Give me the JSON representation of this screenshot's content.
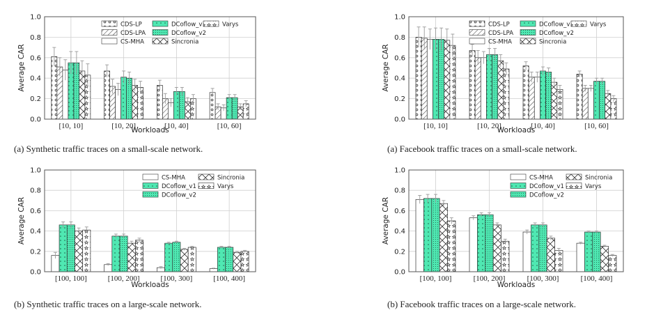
{
  "colors": {
    "green": "#4fe8b2",
    "frame": "#555555",
    "grid": "#cfcfcf",
    "err": "#9a9a9a"
  },
  "chart_data": [
    {
      "id": "a-synthetic-small",
      "type": "bar",
      "caption": "(a) Synthetic traffic traces on a small-scale network.",
      "xlabel": "Workloads",
      "ylabel": "Average CAR",
      "ylim": [
        0,
        1.0
      ],
      "yticks": [
        "0.0",
        "0.2",
        "0.4",
        "0.6",
        "0.8",
        "1.0"
      ],
      "categories": [
        "[10, 10]",
        "[10, 20]",
        "[10, 40]",
        "[10, 60]"
      ],
      "legend": {
        "placement": "top-right",
        "columns": 3
      },
      "series": [
        {
          "name": "CDS-LP",
          "pattern": "dots",
          "values": [
            0.61,
            0.47,
            0.33,
            0.26
          ],
          "err": [
            0.09,
            0.06,
            0.05,
            0.04
          ]
        },
        {
          "name": "CDS-LPA",
          "pattern": "diag",
          "values": [
            0.51,
            0.32,
            0.2,
            0.12
          ],
          "err": [
            0.09,
            0.07,
            0.05,
            0.03
          ]
        },
        {
          "name": "CS-MHA",
          "pattern": "blank",
          "values": [
            0.48,
            0.29,
            0.16,
            0.11
          ],
          "err": [
            0.1,
            0.06,
            0.04,
            0.03
          ]
        },
        {
          "name": "DCoflow_v1",
          "pattern": "greendot",
          "values": [
            0.55,
            0.41,
            0.27,
            0.21
          ],
          "err": [
            0.11,
            0.06,
            0.04,
            0.03
          ]
        },
        {
          "name": "DCoflow_v2",
          "pattern": "greenfine",
          "values": [
            0.55,
            0.4,
            0.27,
            0.21
          ],
          "err": [
            0.11,
            0.06,
            0.04,
            0.03
          ]
        },
        {
          "name": "Sincronia",
          "pattern": "cross",
          "values": [
            0.47,
            0.33,
            0.17,
            0.12
          ],
          "err": [
            0.1,
            0.06,
            0.04,
            0.03
          ]
        },
        {
          "name": "Varys",
          "pattern": "stars",
          "values": [
            0.43,
            0.31,
            0.2,
            0.15
          ],
          "err": [
            0.11,
            0.06,
            0.04,
            0.03
          ]
        }
      ]
    },
    {
      "id": "a-facebook-small",
      "type": "bar",
      "caption": "(a) Facebook traffic traces on a small-scale network.",
      "xlabel": "Workloads",
      "ylabel": "Average CAR",
      "ylim": [
        0,
        1.0
      ],
      "yticks": [
        "0.0",
        "0.2",
        "0.4",
        "0.6",
        "0.8",
        "1.0"
      ],
      "categories": [
        "[10, 10]",
        "[10, 20]",
        "[10, 40]",
        "[10, 60]"
      ],
      "legend": {
        "placement": "top-right",
        "columns": 3
      },
      "series": [
        {
          "name": "CDS-LP",
          "pattern": "dots",
          "values": [
            0.8,
            0.67,
            0.52,
            0.44
          ],
          "err": [
            0.1,
            0.06,
            0.04,
            0.03
          ]
        },
        {
          "name": "CDS-LPA",
          "pattern": "diag",
          "values": [
            0.79,
            0.6,
            0.41,
            0.3
          ],
          "err": [
            0.11,
            0.07,
            0.05,
            0.03
          ]
        },
        {
          "name": "CS-MHA",
          "pattern": "blank",
          "values": [
            0.78,
            0.6,
            0.41,
            0.3
          ],
          "err": [
            0.1,
            0.06,
            0.05,
            0.03
          ]
        },
        {
          "name": "DCoflow_v1",
          "pattern": "greendot",
          "values": [
            0.78,
            0.63,
            0.47,
            0.37
          ],
          "err": [
            0.11,
            0.06,
            0.04,
            0.03
          ]
        },
        {
          "name": "DCoflow_v2",
          "pattern": "greenfine",
          "values": [
            0.78,
            0.63,
            0.46,
            0.37
          ],
          "err": [
            0.11,
            0.06,
            0.04,
            0.03
          ]
        },
        {
          "name": "Sincronia",
          "pattern": "cross",
          "values": [
            0.77,
            0.57,
            0.36,
            0.25
          ],
          "err": [
            0.11,
            0.06,
            0.04,
            0.03
          ]
        },
        {
          "name": "Varys",
          "pattern": "stars",
          "values": [
            0.72,
            0.49,
            0.29,
            0.2
          ],
          "err": [
            0.11,
            0.06,
            0.04,
            0.03
          ]
        }
      ]
    },
    {
      "id": "b-synthetic-large",
      "type": "bar",
      "caption": "(b) Synthetic traffic traces on a large-scale network.",
      "xlabel": "Workloads",
      "ylabel": "Average CAR",
      "ylim": [
        0,
        1.0
      ],
      "yticks": [
        "0.0",
        "0.2",
        "0.4",
        "0.6",
        "0.8",
        "1.0"
      ],
      "categories": [
        "[100, 100]",
        "[100, 200]",
        "[100, 300]",
        "[100, 400]"
      ],
      "legend": {
        "placement": "top-right",
        "columns": 2
      },
      "series": [
        {
          "name": "CS-MHA",
          "pattern": "blank",
          "values": [
            0.16,
            0.07,
            0.04,
            0.03
          ],
          "err": [
            0.03,
            0.01,
            0.01,
            0.005
          ]
        },
        {
          "name": "DCoflow_v1",
          "pattern": "greendot",
          "values": [
            0.46,
            0.35,
            0.28,
            0.24
          ],
          "err": [
            0.03,
            0.02,
            0.01,
            0.01
          ]
        },
        {
          "name": "DCoflow_v2",
          "pattern": "greenfine",
          "values": [
            0.46,
            0.35,
            0.29,
            0.24
          ],
          "err": [
            0.03,
            0.02,
            0.01,
            0.01
          ]
        },
        {
          "name": "Sincronia",
          "pattern": "cross",
          "values": [
            0.4,
            0.28,
            0.22,
            0.19
          ],
          "err": [
            0.03,
            0.02,
            0.01,
            0.01
          ]
        },
        {
          "name": "Varys",
          "pattern": "stars",
          "values": [
            0.41,
            0.31,
            0.24,
            0.2
          ],
          "err": [
            0.03,
            0.02,
            0.01,
            0.01
          ]
        }
      ]
    },
    {
      "id": "b-facebook-large",
      "type": "bar",
      "caption": "(b) Facebook traffic traces on a large-scale network.",
      "xlabel": "Workloads",
      "ylabel": "Average CAR",
      "ylim": [
        0,
        1.0
      ],
      "yticks": [
        "0.0",
        "0.2",
        "0.4",
        "0.6",
        "0.8",
        "1.0"
      ],
      "categories": [
        "[100, 100]",
        "[100, 200]",
        "[100, 300]",
        "[100, 400]"
      ],
      "legend": {
        "placement": "top-right",
        "columns": 2
      },
      "series": [
        {
          "name": "CS-MHA",
          "pattern": "blank",
          "values": [
            0.71,
            0.53,
            0.39,
            0.28
          ],
          "err": [
            0.04,
            0.02,
            0.02,
            0.01
          ]
        },
        {
          "name": "DCoflow_v1",
          "pattern": "greendot",
          "values": [
            0.72,
            0.56,
            0.46,
            0.39
          ],
          "err": [
            0.04,
            0.02,
            0.02,
            0.01
          ]
        },
        {
          "name": "DCoflow_v2",
          "pattern": "greenfine",
          "values": [
            0.72,
            0.56,
            0.46,
            0.39
          ],
          "err": [
            0.04,
            0.02,
            0.02,
            0.01
          ]
        },
        {
          "name": "Sincronia",
          "pattern": "cross",
          "values": [
            0.67,
            0.46,
            0.33,
            0.25
          ],
          "err": [
            0.03,
            0.02,
            0.02,
            0.01
          ]
        },
        {
          "name": "Varys",
          "pattern": "stars",
          "values": [
            0.5,
            0.3,
            0.21,
            0.16
          ],
          "err": [
            0.03,
            0.02,
            0.02,
            0.01
          ]
        }
      ]
    }
  ]
}
